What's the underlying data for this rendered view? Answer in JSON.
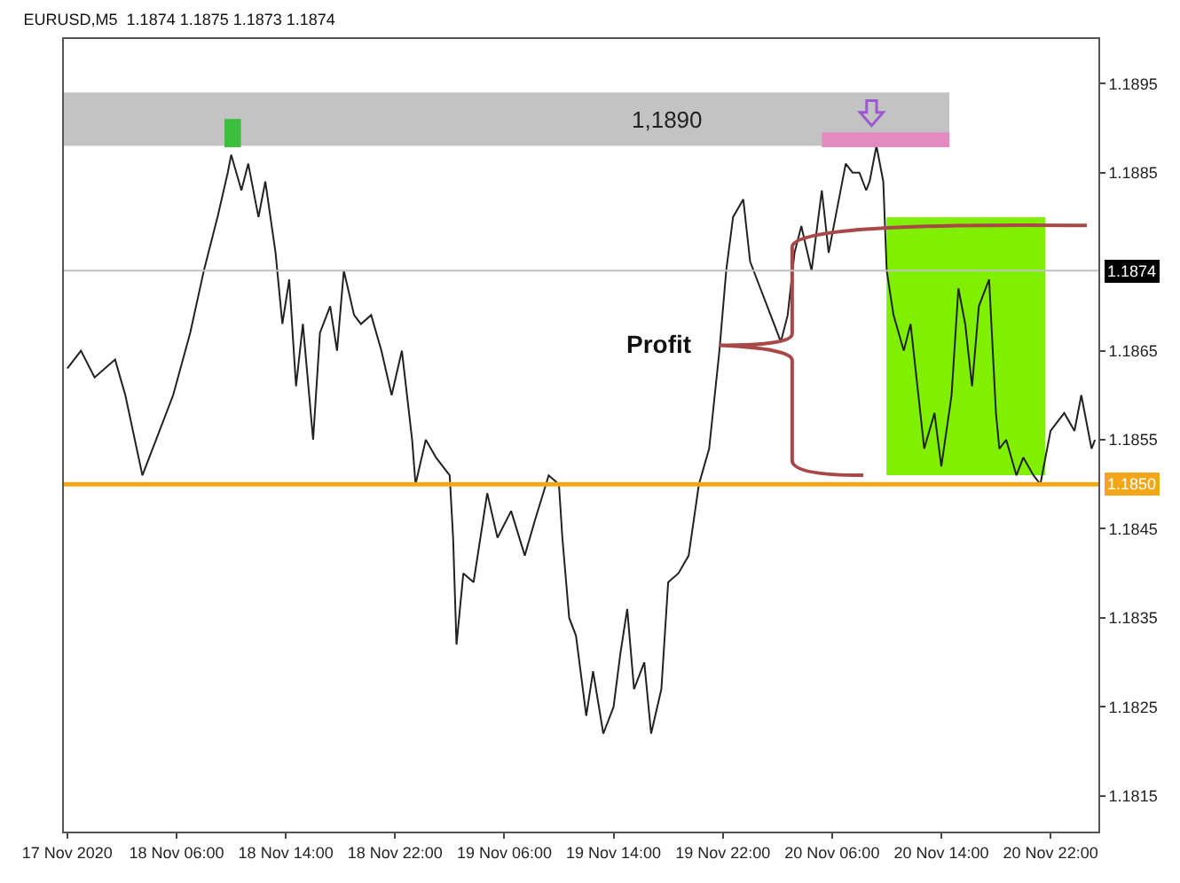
{
  "chart_data": {
    "type": "line",
    "title": "EURUSD,M5  1.1874 1.1875 1.1873 1.1874",
    "x": [
      "2020-11-17T22:00",
      "2020-11-17T23:00",
      "2020-11-18T00:00",
      "2020-11-18T01:30",
      "2020-11-18T02:15",
      "2020-11-18T03:30",
      "2020-11-18T04:30",
      "2020-11-18T05:45",
      "2020-11-18T07:00",
      "2020-11-18T08:00",
      "2020-11-18T09:00",
      "2020-11-18T09:45",
      "2020-11-18T10:00",
      "2020-11-18T10:45",
      "2020-11-18T11:15",
      "2020-11-18T12:00",
      "2020-11-18T12:30",
      "2020-11-18T13:15",
      "2020-11-18T13:45",
      "2020-11-18T14:15",
      "2020-11-18T14:45",
      "2020-11-18T15:15",
      "2020-11-18T16:00",
      "2020-11-18T16:30",
      "2020-11-18T17:15",
      "2020-11-18T17:45",
      "2020-11-18T18:15",
      "2020-11-18T19:00",
      "2020-11-18T19:30",
      "2020-11-18T20:15",
      "2020-11-18T21:00",
      "2020-11-18T21:45",
      "2020-11-18T22:30",
      "2020-11-18T23:15",
      "2020-11-18T23:30",
      "2020-11-19T00:15",
      "2020-11-19T01:00",
      "2020-11-19T02:00",
      "2020-11-19T02:15",
      "2020-11-19T02:30",
      "2020-11-19T03:00",
      "2020-11-19T03:45",
      "2020-11-19T04:45",
      "2020-11-19T05:30",
      "2020-11-19T06:30",
      "2020-11-19T07:30",
      "2020-11-19T08:15",
      "2020-11-19T09:15",
      "2020-11-19T10:00",
      "2020-11-19T10:15",
      "2020-11-19T10:45",
      "2020-11-19T11:15",
      "2020-11-19T12:00",
      "2020-11-19T12:30",
      "2020-11-19T13:15",
      "2020-11-19T14:00",
      "2020-11-19T14:30",
      "2020-11-19T15:00",
      "2020-11-19T15:30",
      "2020-11-19T16:15",
      "2020-11-19T16:45",
      "2020-11-19T17:30",
      "2020-11-19T18:00",
      "2020-11-19T18:45",
      "2020-11-19T19:30",
      "2020-11-19T20:15",
      "2020-11-19T21:00",
      "2020-11-19T21:45",
      "2020-11-19T22:15",
      "2020-11-19T22:45",
      "2020-11-19T23:30",
      "2020-11-20T00:00",
      "2020-11-20T00:45",
      "2020-11-20T01:45",
      "2020-11-20T02:15",
      "2020-11-20T02:45",
      "2020-11-20T03:15",
      "2020-11-20T03:45",
      "2020-11-20T04:30",
      "2020-11-20T05:15",
      "2020-11-20T05:45",
      "2020-11-20T06:15",
      "2020-11-20T07:00",
      "2020-11-20T07:30",
      "2020-11-20T08:00",
      "2020-11-20T08:30",
      "2020-11-20T08:45",
      "2020-11-20T09:15",
      "2020-11-20T09:45",
      "2020-11-20T10:00",
      "2020-11-20T10:30",
      "2020-11-20T11:15",
      "2020-11-20T11:45",
      "2020-11-20T12:15",
      "2020-11-20T12:45",
      "2020-11-20T13:30",
      "2020-11-20T14:00",
      "2020-11-20T14:45",
      "2020-11-20T15:15",
      "2020-11-20T15:45",
      "2020-11-20T16:15",
      "2020-11-20T16:45",
      "2020-11-20T17:30",
      "2020-11-20T18:00",
      "2020-11-20T18:15",
      "2020-11-20T18:45",
      "2020-11-20T19:30",
      "2020-11-20T20:00",
      "2020-11-20T20:45",
      "2020-11-20T21:15",
      "2020-11-20T22:00",
      "2020-11-20T22:30",
      "2020-11-20T23:00",
      "2020-11-20T23:45",
      "2020-11-21T00:15",
      "2020-11-21T01:00",
      "2020-11-21T01:15"
    ],
    "series": [
      {
        "color": "#222222",
        "values": [
          1.1863,
          1.1865,
          1.1862,
          1.1864,
          1.186,
          1.1851,
          1.1855,
          1.186,
          1.1867,
          1.1874,
          1.188,
          1.1885,
          1.1887,
          1.1883,
          1.1886,
          1.188,
          1.1884,
          1.1876,
          1.1868,
          1.1873,
          1.1861,
          1.1868,
          1.1855,
          1.1867,
          1.187,
          1.1865,
          1.1874,
          1.1869,
          1.1868,
          1.1869,
          1.1865,
          1.186,
          1.1865,
          1.1855,
          1.185,
          1.1855,
          1.1853,
          1.1851,
          1.1844,
          1.1832,
          1.184,
          1.1839,
          1.1849,
          1.1844,
          1.1847,
          1.1842,
          1.1846,
          1.1851,
          1.185,
          1.1844,
          1.1835,
          1.1833,
          1.1824,
          1.1829,
          1.1822,
          1.1825,
          1.1831,
          1.1836,
          1.1827,
          1.183,
          1.1822,
          1.1827,
          1.1839,
          1.184,
          1.1842,
          1.185,
          1.1854,
          1.1865,
          1.1874,
          1.188,
          1.1882,
          1.1875,
          1.1872,
          1.1868,
          1.1866,
          1.1869,
          1.1876,
          1.1879,
          1.1874,
          1.1883,
          1.1876,
          1.188,
          1.1886,
          1.1885,
          1.1885,
          1.1883,
          1.1884,
          1.1888,
          1.1884,
          1.1874,
          1.1869,
          1.1865,
          1.1868,
          1.1861,
          1.1854,
          1.1858,
          1.1852,
          1.186,
          1.1872,
          1.1868,
          1.1861,
          1.187,
          1.1873,
          1.1858,
          1.1854,
          1.1855,
          1.1851,
          1.1853,
          1.1851,
          1.185,
          1.1856,
          1.1857,
          1.1858,
          1.1856,
          1.186,
          1.1854,
          1.1855
        ]
      }
    ],
    "xlim": [
      "2020-11-17T21:45",
      "2020-11-21T01:30"
    ],
    "xticks": [
      {
        "value": "2020-11-17T22:00",
        "label": "17 Nov 2020"
      },
      {
        "value": "2020-11-18T06:00",
        "label": "18 Nov 06:00"
      },
      {
        "value": "2020-11-18T14:00",
        "label": "18 Nov 14:00"
      },
      {
        "value": "2020-11-18T22:00",
        "label": "18 Nov 22:00"
      },
      {
        "value": "2020-11-19T06:00",
        "label": "19 Nov 06:00"
      },
      {
        "value": "2020-11-19T14:00",
        "label": "19 Nov 14:00"
      },
      {
        "value": "2020-11-19T22:00",
        "label": "19 Nov 22:00"
      },
      {
        "value": "2020-11-20T06:00",
        "label": "20 Nov 06:00"
      },
      {
        "value": "2020-11-20T14:00",
        "label": "20 Nov 14:00"
      },
      {
        "value": "2020-11-20T22:00",
        "label": "20 Nov 22:00"
      }
    ],
    "ylim": [
      1.1811,
      1.19
    ],
    "yticks": [
      {
        "value": 1.1815,
        "label": "1.1815"
      },
      {
        "value": 1.1825,
        "label": "1.1825"
      },
      {
        "value": 1.1835,
        "label": "1.1835"
      },
      {
        "value": 1.1845,
        "label": "1.1845"
      },
      {
        "value": 1.1855,
        "label": "1.1855"
      },
      {
        "value": 1.1865,
        "label": "1.1865"
      },
      {
        "value": 1.1885,
        "label": "1.1885"
      },
      {
        "value": 1.1895,
        "label": "1.1895"
      }
    ],
    "ref_lines": [
      {
        "axis": "y",
        "value": 1.185,
        "label": "1.1850",
        "color": "#f2a71b"
      },
      {
        "axis": "y",
        "value": 1.1874,
        "label": "1.1874",
        "color": "#c0c0c0"
      }
    ],
    "bands": [
      {
        "axis": "y",
        "from": 1.1888,
        "to": 1.1894,
        "label": "1,1890",
        "color": "#c3c3c3"
      }
    ],
    "annotations": [
      "Profit"
    ]
  }
}
